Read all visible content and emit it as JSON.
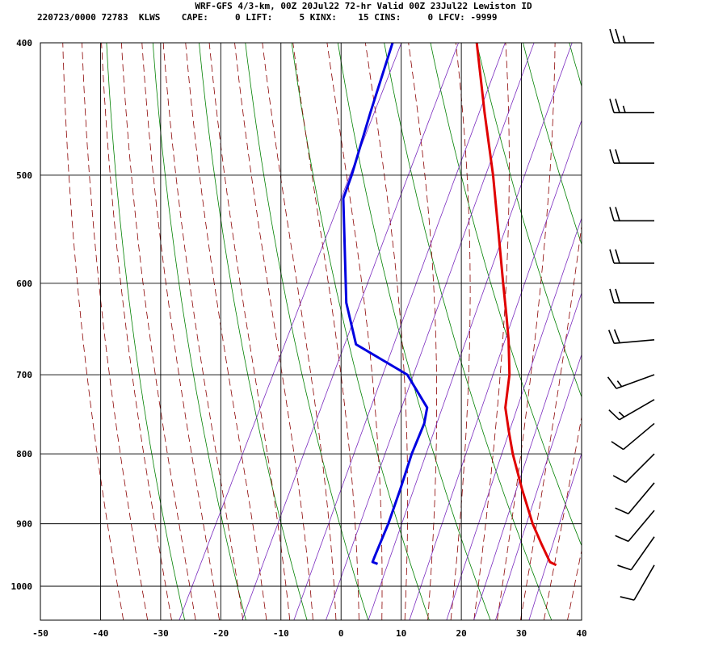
{
  "header": {
    "title": "WRF-GFS 4/3-km, 00Z 20Jul22 72-hr Valid 00Z 23Jul22 Lewiston ID",
    "line2": "220723/0000 72783  KLWS    CAPE:     0 LIFT:     5 KINX:    15 CINS:     0 LFCV: -9999"
  },
  "chart_data": {
    "type": "line",
    "chart_kind": "skew-T log-P sounding",
    "xlim": [
      -50,
      40
    ],
    "ylim": [
      1040,
      400
    ],
    "log_y": true,
    "x_ticks": [
      "-50",
      "-40",
      "-30",
      "-20",
      "-10",
      "0",
      "10",
      "20",
      "30",
      "40"
    ],
    "y_ticks": [
      "400",
      "500",
      "600",
      "700",
      "800",
      "900",
      "1000"
    ],
    "grid": true,
    "background_lines": {
      "dry_adiabats_color": "#008000",
      "moist_adiabats_color": "#8b0000",
      "mixing_ratio_color": "#7b2cbf"
    },
    "series": [
      {
        "key": "temperature",
        "color": "#e00000",
        "points": [
          {
            "p": 965,
            "t": 31.3
          },
          {
            "p": 960,
            "t": 30.0
          },
          {
            "p": 930,
            "t": 27.0
          },
          {
            "p": 900,
            "t": 24.0
          },
          {
            "p": 850,
            "t": 19.5
          },
          {
            "p": 800,
            "t": 15.0
          },
          {
            "p": 770,
            "t": 12.5
          },
          {
            "p": 740,
            "t": 10.0
          },
          {
            "p": 700,
            "t": 8.0
          },
          {
            "p": 660,
            "t": 5.0
          },
          {
            "p": 635,
            "t": 2.8
          },
          {
            "p": 600,
            "t": -0.5
          },
          {
            "p": 550,
            "t": -5.5
          },
          {
            "p": 500,
            "t": -11.0
          },
          {
            "p": 450,
            "t": -17.5
          },
          {
            "p": 400,
            "t": -24.5
          }
        ]
      },
      {
        "key": "dewpoint",
        "color": "#0000e0",
        "points": [
          {
            "p": 963,
            "t": 1.5
          },
          {
            "p": 960,
            "t": 0.5
          },
          {
            "p": 950,
            "t": 0.4
          },
          {
            "p": 900,
            "t": 0.0
          },
          {
            "p": 850,
            "t": -0.8
          },
          {
            "p": 800,
            "t": -1.8
          },
          {
            "p": 760,
            "t": -2.2
          },
          {
            "p": 740,
            "t": -3.0
          },
          {
            "p": 700,
            "t": -9.0
          },
          {
            "p": 665,
            "t": -20.0
          },
          {
            "p": 620,
            "t": -25.0
          },
          {
            "p": 520,
            "t": -34.0
          },
          {
            "p": 500,
            "t": -34.5
          },
          {
            "p": 450,
            "t": -36.5
          },
          {
            "p": 400,
            "t": -38.5
          }
        ]
      }
    ],
    "wind_barbs": [
      {
        "p": 965,
        "dir": 210,
        "spd": 10
      },
      {
        "p": 920,
        "dir": 215,
        "spd": 10
      },
      {
        "p": 880,
        "dir": 220,
        "spd": 10
      },
      {
        "p": 840,
        "dir": 220,
        "spd": 10
      },
      {
        "p": 800,
        "dir": 225,
        "spd": 10
      },
      {
        "p": 760,
        "dir": 230,
        "spd": 10
      },
      {
        "p": 730,
        "dir": 240,
        "spd": 15
      },
      {
        "p": 700,
        "dir": 250,
        "spd": 15
      },
      {
        "p": 660,
        "dir": 265,
        "spd": 20
      },
      {
        "p": 620,
        "dir": 270,
        "spd": 20
      },
      {
        "p": 580,
        "dir": 270,
        "spd": 20
      },
      {
        "p": 540,
        "dir": 270,
        "spd": 20
      },
      {
        "p": 490,
        "dir": 270,
        "spd": 20
      },
      {
        "p": 450,
        "dir": 270,
        "spd": 25
      },
      {
        "p": 400,
        "dir": 270,
        "spd": 25
      }
    ]
  }
}
